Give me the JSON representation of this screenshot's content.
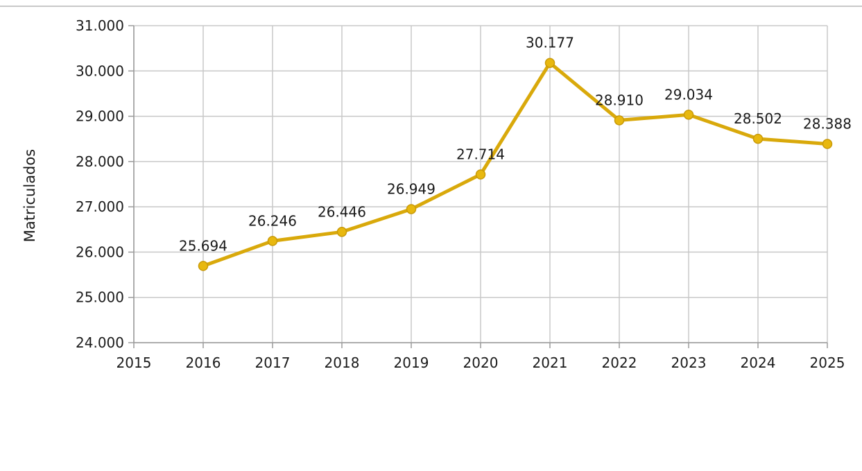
{
  "chart_data": {
    "type": "line",
    "title": "",
    "xlabel": "",
    "ylabel": "Matriculados",
    "x": [
      2016,
      2017,
      2018,
      2019,
      2020,
      2021,
      2022,
      2023,
      2024,
      2025
    ],
    "values": [
      25694,
      26246,
      26446,
      26949,
      27714,
      30177,
      28910,
      29034,
      28502,
      28388
    ],
    "data_labels": [
      "25.694",
      "26.246",
      "26.446",
      "26.949",
      "27.714",
      "30.177",
      "28.910",
      "29.034",
      "28.502",
      "28.388"
    ],
    "xlim": [
      2015,
      2025
    ],
    "ylim": [
      24000,
      31000
    ],
    "x_ticks": [
      "2015",
      "2016",
      "2017",
      "2018",
      "2019",
      "2020",
      "2021",
      "2022",
      "2023",
      "2024",
      "2025"
    ],
    "y_ticks": [
      {
        "value": 24000,
        "label": "24.000"
      },
      {
        "value": 25000,
        "label": "25.000"
      },
      {
        "value": 26000,
        "label": "26.000"
      },
      {
        "value": 27000,
        "label": "27.000"
      },
      {
        "value": 28000,
        "label": "28.000"
      },
      {
        "value": 29000,
        "label": "29.000"
      },
      {
        "value": 30000,
        "label": "30.000"
      },
      {
        "value": 31000,
        "label": "31.000"
      }
    ],
    "grid": true,
    "legend": "none",
    "colors": {
      "line": "#d9a90b",
      "marker_fill": "#e8b80f",
      "grid": "#c8c8c8",
      "axis": "#9a9a9a"
    }
  }
}
